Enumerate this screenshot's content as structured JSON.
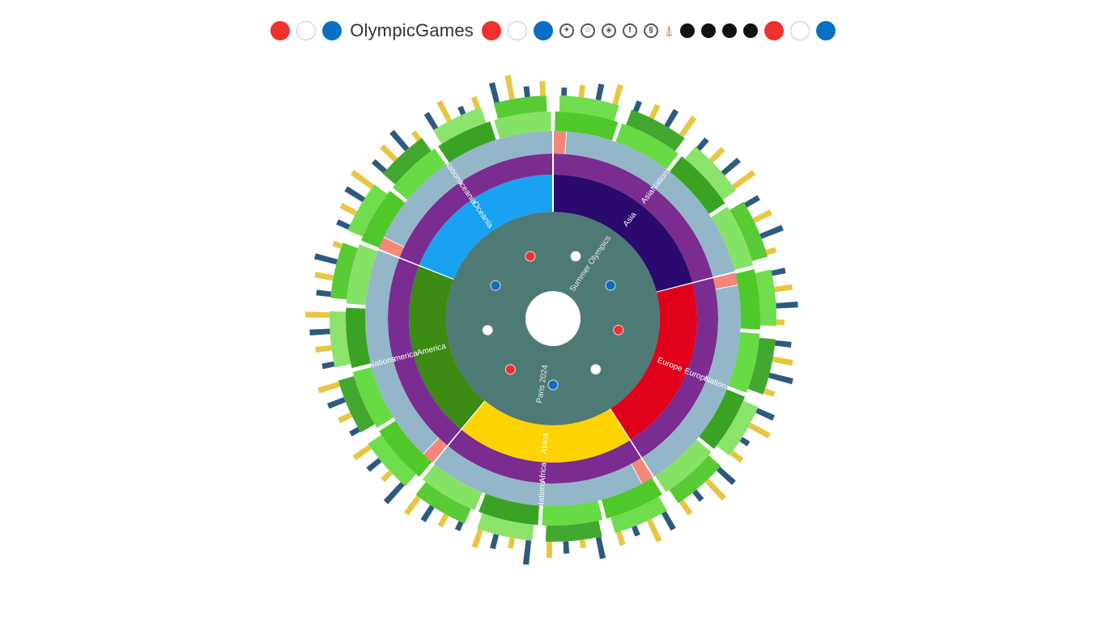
{
  "header": {
    "title": "OlympicGames",
    "colors": {
      "red": "#f0312e",
      "blue": "#0a6fc2",
      "black": "#111111"
    },
    "pictograms": [
      "pictogram-1-icon",
      "pictogram-2-icon",
      "pictogram-3-icon",
      "pictogram-4-icon",
      "pictogram-5-icon"
    ],
    "torch_icon": "torch-icon"
  },
  "chart_data": {
    "type": "sunburst",
    "title": "OlympicGames",
    "center": {
      "labels": [
        "Summer Olympics",
        "Paris 2024"
      ]
    },
    "ring_colors": {
      "continent": {
        "Asia": "#2a0a6e",
        "Europe": "#e0001b",
        "Africa": "#ffd300",
        "America": "#3a8a14",
        "Oceania": "#1aa2f2"
      },
      "level2": "#7b2c91",
      "level3": "#93b6c9",
      "outer": [
        "#46c51f",
        "#5fd93a",
        "#2f9e18",
        "#7fe05c"
      ],
      "highlight": "#f4877a"
    },
    "continents": [
      {
        "name": "Asia",
        "share": 0.21,
        "level2": [
          "Asia"
        ],
        "level3": [
          "Nations"
        ]
      },
      {
        "name": "Europe",
        "share": 0.2,
        "level2": [
          "Europe"
        ],
        "level3": [
          "Nations"
        ]
      },
      {
        "name": "Africa",
        "share": 0.2,
        "level2": [
          "Africa"
        ],
        "level3": [
          "Nations"
        ]
      },
      {
        "name": "America",
        "share": 0.2,
        "level2": [
          "America"
        ],
        "level3": [
          "Nations"
        ]
      },
      {
        "name": "Oceania",
        "share": 0.19,
        "level2": [
          "Oceania"
        ],
        "level3": [
          "Nations"
        ]
      }
    ]
  }
}
